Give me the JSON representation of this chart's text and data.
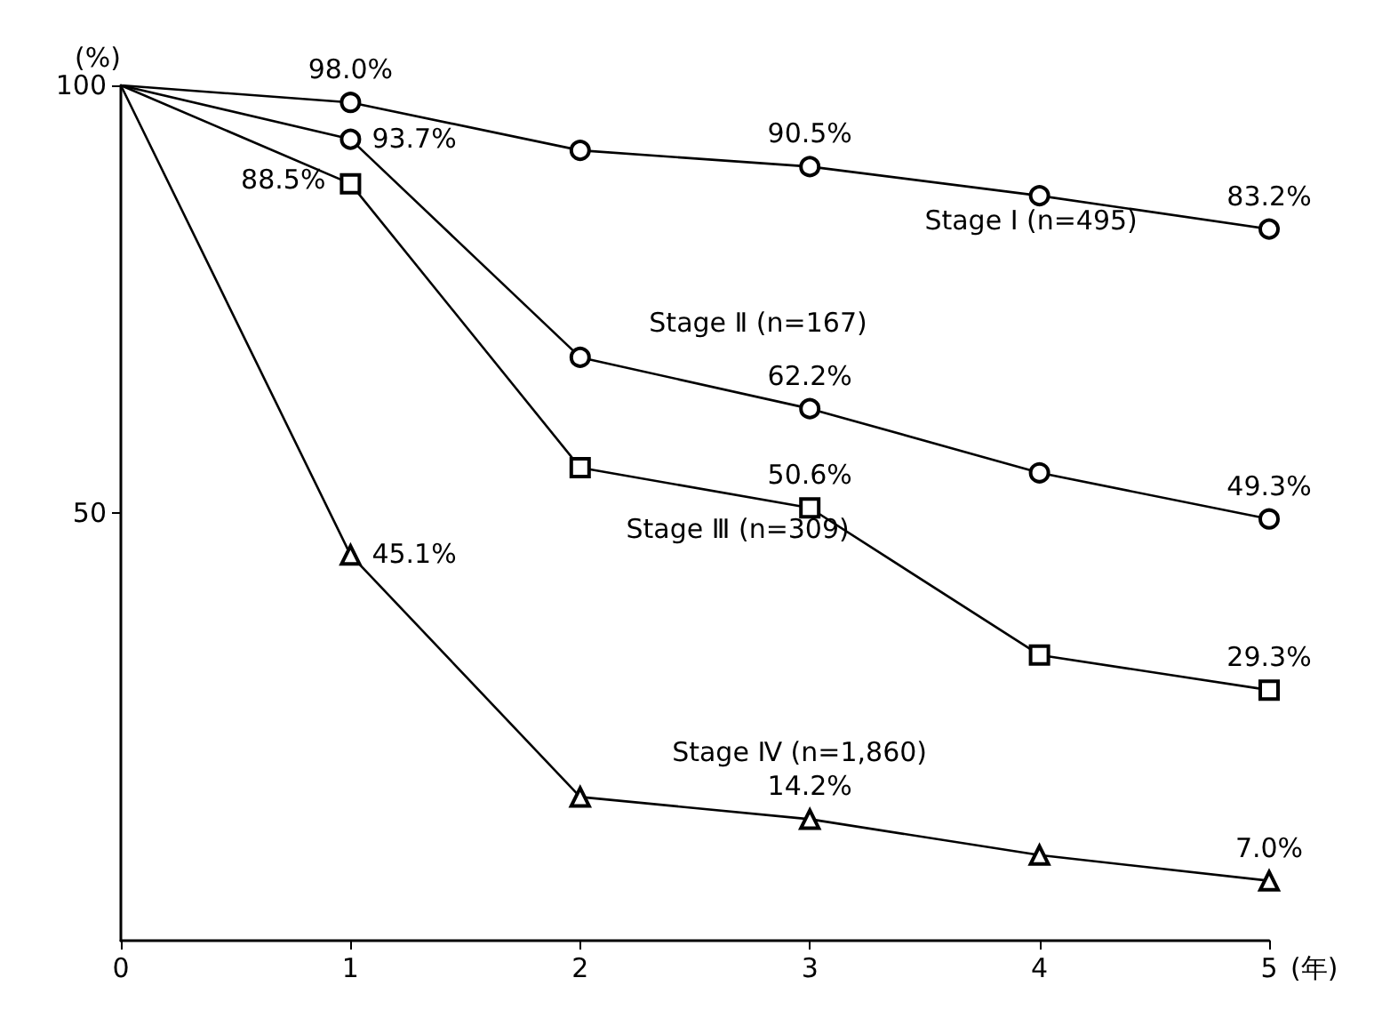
{
  "chart_data": {
    "type": "line",
    "ylabel": "(%)",
    "xlabel": "(年)",
    "x": [
      0,
      1,
      2,
      3,
      4,
      5
    ],
    "xlim": [
      0,
      5
    ],
    "xticks": [
      0,
      1,
      2,
      3,
      4,
      5
    ],
    "ylim": [
      0,
      100
    ],
    "yticks": [
      50,
      100
    ],
    "grid": false,
    "legend": false,
    "line_style": "solid",
    "series": [
      {
        "name": "Stage Ⅰ (n=495)",
        "color": "#000000",
        "marker": "circle",
        "values": [
          100,
          98.0,
          92.4,
          90.5,
          87.1,
          83.2
        ],
        "value_labels": [
          null,
          "98.0%",
          null,
          "90.5%",
          null,
          "83.2%"
        ]
      },
      {
        "name": "Stage Ⅱ (n=167)",
        "color": "#000000",
        "marker": "circle",
        "values": [
          100,
          93.7,
          68.2,
          62.2,
          54.7,
          49.3
        ],
        "value_labels": [
          null,
          "93.7%",
          null,
          "62.2%",
          null,
          "49.3%"
        ]
      },
      {
        "name": "Stage Ⅲ (n=309)",
        "color": "#000000",
        "marker": "square",
        "values": [
          100,
          88.5,
          55.3,
          50.6,
          33.4,
          29.3
        ],
        "value_labels": [
          null,
          "88.5%",
          null,
          "50.6%",
          null,
          "29.3%"
        ]
      },
      {
        "name": "Stage Ⅳ (n=1,860)",
        "color": "#000000",
        "marker": "triangle",
        "values": [
          100,
          45.1,
          16.8,
          14.2,
          10.0,
          7.0
        ],
        "value_labels": [
          null,
          "45.1%",
          null,
          "14.2%",
          null,
          "7.0%"
        ]
      }
    ]
  }
}
